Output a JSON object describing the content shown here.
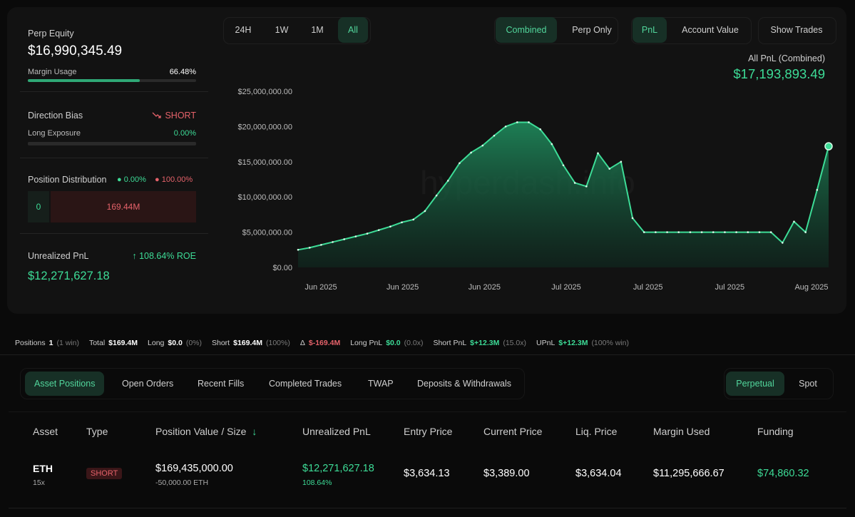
{
  "summary": {
    "perp_equity": {
      "label": "Perp Equity",
      "value": "$16,990,345.49"
    },
    "margin_usage": {
      "label": "Margin Usage",
      "value": 66.48,
      "value_label": "66.48%"
    },
    "direction_bias": {
      "label": "Direction Bias",
      "value": "SHORT"
    },
    "long_exposure": {
      "label": "Long Exposure",
      "value": 0,
      "value_label": "0.00%"
    },
    "position_distribution": {
      "label": "Position Distribution",
      "long_pct": "0.00%",
      "short_pct": "100.00%",
      "long_value": "0",
      "short_value": "169.44M"
    },
    "unrealized_pnl": {
      "label": "Unrealized PnL",
      "roe": "108.64% ROE",
      "value": "$12,271,627.18"
    }
  },
  "controls": {
    "ranges": [
      "24H",
      "1W",
      "1M",
      "All"
    ],
    "modes": [
      "Combined",
      "Perp Only"
    ],
    "metrics": [
      "PnL",
      "Account Value"
    ],
    "show_trades": "Show Trades"
  },
  "chart_data": {
    "type": "area",
    "title": "All PnL (Combined)",
    "subtitle": "$17,193,893.49",
    "watermark": "hyperdash.info",
    "color": "#3ddc97",
    "values": [
      2500000,
      2800000,
      3200000,
      3600000,
      4000000,
      4400000,
      4800000,
      5300000,
      5800000,
      6400000,
      6800000,
      8000000,
      10200000,
      12300000,
      14800000,
      16300000,
      17300000,
      18700000,
      20000000,
      20600000,
      20600000,
      19600000,
      17500000,
      14500000,
      12000000,
      11500000,
      16200000,
      14000000,
      15000000,
      7000000,
      5000000,
      5000000,
      5000000,
      5000000,
      5000000,
      5000000,
      5000000,
      5000000,
      5000000,
      5000000,
      5000000,
      5000000,
      3500000,
      6500000,
      5000000,
      11000000,
      17193893.49
    ],
    "xtick_labels": [
      "Jun 2025",
      "Jun 2025",
      "Jun 2025",
      "Jul 2025",
      "Jul 2025",
      "Jul 2025",
      "Aug 2025"
    ],
    "ylim": [
      0,
      25000000
    ],
    "yticks": [
      {
        "value": 0,
        "label": "$0.00"
      },
      {
        "value": 5000000,
        "label": "$5,000,000.00"
      },
      {
        "value": 10000000,
        "label": "$10,000,000.00"
      },
      {
        "value": 15000000,
        "label": "$15,000,000.00"
      },
      {
        "value": 20000000,
        "label": "$20,000,000.00"
      },
      {
        "value": 25000000,
        "label": "$25,000,000.00"
      }
    ]
  },
  "stats": [
    {
      "label": "Positions",
      "value": "1",
      "note": "(1 win)"
    },
    {
      "label": "Total",
      "value": "$169.4M"
    },
    {
      "label": "Long",
      "value": "$0.0",
      "note": "(0%)"
    },
    {
      "label": "Short",
      "value": "$169.4M",
      "note": "(100%)"
    },
    {
      "label": "Δ",
      "value": "$-169.4M",
      "tone": "red"
    },
    {
      "label": "Long PnL",
      "value": "$0.0",
      "note": "(0.0x)",
      "tone": "green"
    },
    {
      "label": "Short PnL",
      "value": "$+12.3M",
      "note": "(15.0x)",
      "tone": "green"
    },
    {
      "label": "UPnL",
      "value": "$+12.3M",
      "note": "(100% win)",
      "tone": "green"
    }
  ],
  "tabs": [
    "Asset Positions",
    "Open Orders",
    "Recent Fills",
    "Completed Trades",
    "TWAP",
    "Deposits & Withdrawals"
  ],
  "market_tabs": [
    "Perpetual",
    "Spot"
  ],
  "table": {
    "headers": [
      "Asset",
      "Type",
      "Position Value / Size",
      "Unrealized PnL",
      "Entry Price",
      "Current Price",
      "Liq. Price",
      "Margin Used",
      "Funding"
    ],
    "rows": [
      {
        "asset": "ETH",
        "leverage": "15x",
        "type": "SHORT",
        "position_value": "$169,435,000.00",
        "size": "-50,000.00 ETH",
        "pnl": "$12,271,627.18",
        "pnl_pct": "108.64%",
        "entry": "$3,634.13",
        "current": "$3,389.00",
        "liq": "$3,634.04",
        "margin": "$11,295,666.67",
        "funding": "$74,860.32"
      }
    ]
  }
}
